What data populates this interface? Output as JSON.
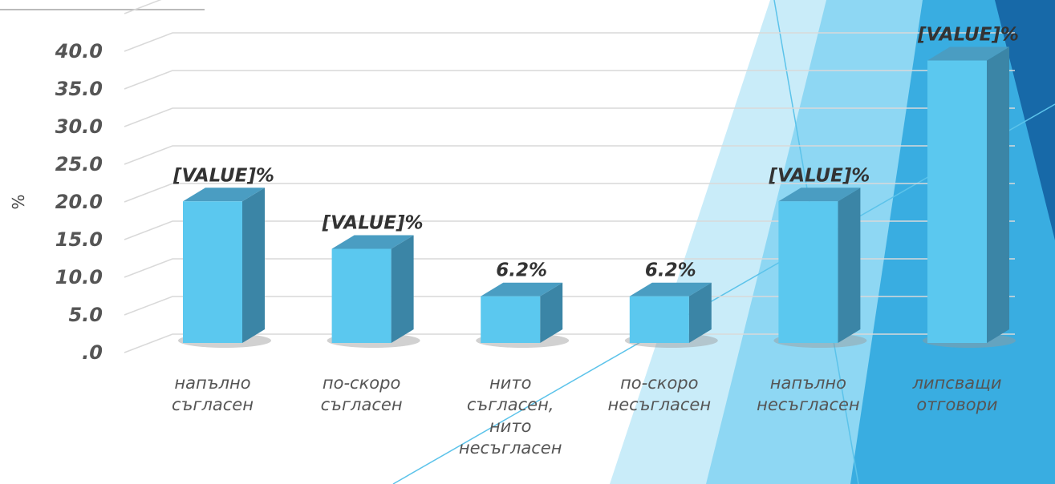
{
  "chart_data": {
    "type": "bar3d",
    "y_label": "%",
    "categories": [
      "напълно съгласен",
      "по-скоро съгласен",
      "нито съгласен, нито несъгласен",
      "по-скоро несъгласен",
      "напълно несъгласен",
      "липсващи отговори"
    ],
    "values": [
      18.8,
      12.5,
      6.2,
      6.2,
      18.8,
      37.5
    ],
    "value_labels": [
      "[VALUE]%",
      "[VALUE]%",
      "6.2%",
      "6.2%",
      "[VALUE]%",
      "[VALUE]%"
    ],
    "color": "#5bc8ef",
    "ylim": [
      0,
      45
    ],
    "yticks": [
      {
        "value": 0,
        "label": ".0"
      },
      {
        "value": 5,
        "label": "5.0"
      },
      {
        "value": 10,
        "label": "10.0"
      },
      {
        "value": 15,
        "label": "15.0"
      },
      {
        "value": 20,
        "label": "20.0"
      },
      {
        "value": 25,
        "label": "25.0"
      },
      {
        "value": 30,
        "label": "30.0"
      },
      {
        "value": 35,
        "label": "35.0"
      },
      {
        "value": 40,
        "label": "40.0"
      }
    ],
    "grid": true
  }
}
